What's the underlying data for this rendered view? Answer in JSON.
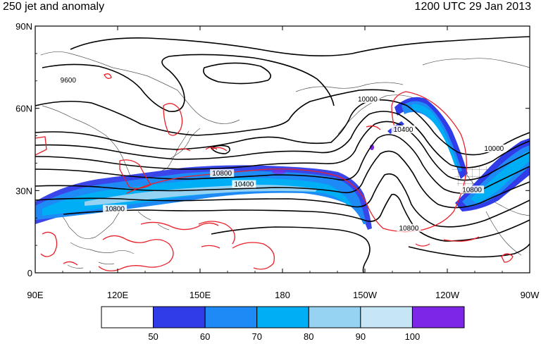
{
  "header": {
    "title": "250 jet and anomaly",
    "datetime": "1200 UTC 29 Jan 2013"
  },
  "map": {
    "projection": "cylindrical-equidistant",
    "lon_range": [
      90,
      270
    ],
    "lat_range": [
      0,
      90
    ],
    "lat_ticks": [
      {
        "value": 90,
        "label": "90N"
      },
      {
        "value": 60,
        "label": "60N"
      },
      {
        "value": 30,
        "label": "30N"
      },
      {
        "value": 0,
        "label": "0"
      }
    ],
    "lon_ticks": [
      {
        "value": 90,
        "label": "90E"
      },
      {
        "value": 120,
        "label": "120E"
      },
      {
        "value": 150,
        "label": "150E"
      },
      {
        "value": 180,
        "label": "180"
      },
      {
        "value": 210,
        "label": "150W"
      },
      {
        "value": 240,
        "label": "120W"
      },
      {
        "value": 270,
        "label": "90W"
      }
    ],
    "contour_labels": [
      {
        "text": "9600",
        "lon": 102,
        "lat": 70
      },
      {
        "text": "10000",
        "lon": 211,
        "lat": 63
      },
      {
        "text": "10400",
        "lon": 224,
        "lat": 52
      },
      {
        "text": "10000",
        "lon": 257,
        "lat": 45
      },
      {
        "text": "10800",
        "lon": 158,
        "lat": 36
      },
      {
        "text": "10400",
        "lon": 166,
        "lat": 32
      },
      {
        "text": "10800",
        "lon": 119,
        "lat": 23
      },
      {
        "text": "10800",
        "lon": 249,
        "lat": 30
      },
      {
        "text": "10800",
        "lon": 226,
        "lat": 16
      }
    ],
    "colors": {
      "height_contour": "#000000",
      "anomaly_contour": "#e8202a",
      "coastline": "#555555"
    }
  },
  "colorbar": {
    "levels": [
      "50",
      "60",
      "70",
      "80",
      "90",
      "100"
    ],
    "colors": [
      "#ffffff",
      "#2f3ce8",
      "#1e8af5",
      "#00aef5",
      "#96d2f2",
      "#c6e6f6",
      "#7d26e8"
    ]
  }
}
